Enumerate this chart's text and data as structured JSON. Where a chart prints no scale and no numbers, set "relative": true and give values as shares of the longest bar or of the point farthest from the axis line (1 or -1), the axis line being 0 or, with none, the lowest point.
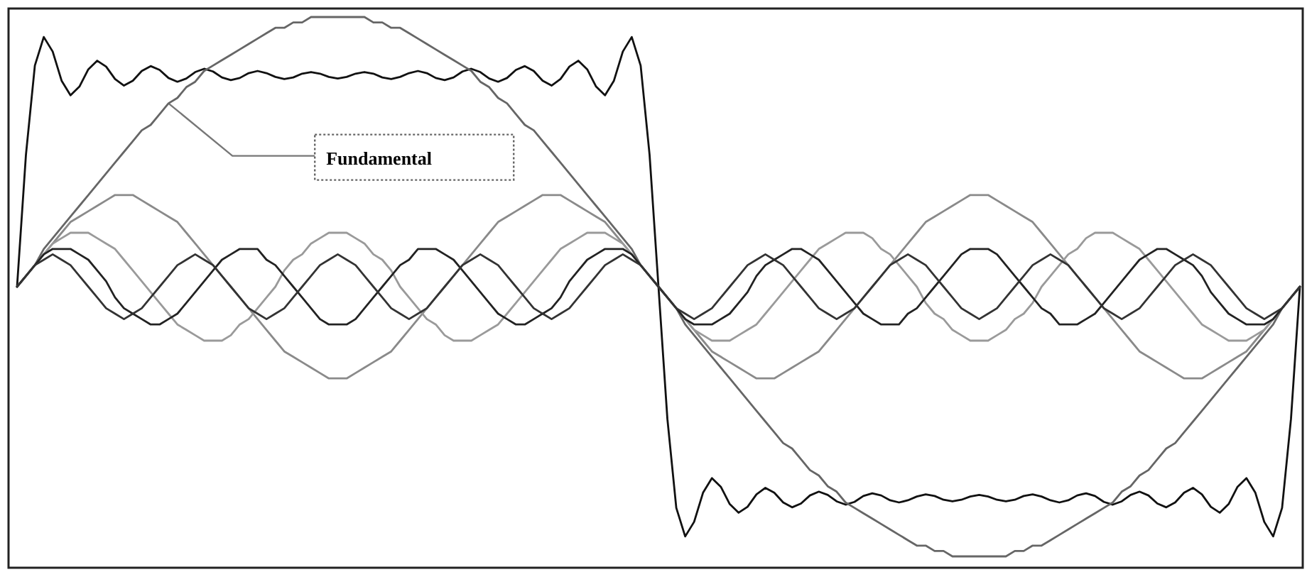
{
  "chart_data": {
    "type": "line",
    "relative": true,
    "categories": [
      null,
      null,
      null,
      null,
      null,
      null,
      null,
      null,
      null,
      null,
      null,
      null,
      null,
      null,
      null,
      null,
      null,
      null,
      null,
      null,
      null,
      null,
      null,
      null,
      null,
      null,
      null,
      null,
      null,
      null,
      null,
      null,
      null,
      null,
      null,
      null,
      null,
      null,
      null,
      null,
      null,
      null,
      null,
      null,
      null,
      null,
      null,
      null,
      null,
      null,
      null,
      null,
      null,
      null,
      null,
      null,
      null,
      null,
      null,
      null,
      null,
      null,
      null,
      null,
      null,
      null,
      null,
      null,
      null,
      null,
      null,
      null,
      null,
      null,
      null,
      null,
      null,
      null,
      null,
      null,
      null,
      null,
      null,
      null,
      null,
      null,
      null,
      null,
      null,
      null,
      null,
      null,
      null,
      null,
      null,
      null,
      null,
      null,
      null,
      null,
      null,
      null,
      null,
      null,
      null,
      null,
      null,
      null,
      null,
      null,
      null,
      null,
      null,
      null,
      null,
      null,
      null,
      null,
      null,
      null,
      null,
      null,
      null,
      null,
      null,
      null,
      null,
      null,
      null,
      null,
      null,
      null,
      null,
      null,
      null,
      null,
      null,
      null,
      null,
      null,
      null,
      null,
      null,
      null,
      null
    ],
    "series": [
      {
        "color": "#111111",
        "values": [
          0.5,
          0.745,
          0.91,
          0.963,
          0.936,
          0.882,
          0.855,
          0.871,
          0.903,
          0.919,
          0.908,
          0.885,
          0.873,
          0.882,
          0.9,
          0.909,
          0.902,
          0.887,
          0.88,
          0.886,
          0.898,
          0.904,
          0.899,
          0.888,
          0.883,
          0.887,
          0.896,
          0.9,
          0.896,
          0.889,
          0.885,
          0.888,
          0.895,
          0.898,
          0.895,
          0.889,
          0.886,
          0.889,
          0.895,
          0.898,
          0.895,
          0.888,
          0.885,
          0.889,
          0.896,
          0.9,
          0.896,
          0.887,
          0.883,
          0.888,
          0.899,
          0.904,
          0.898,
          0.886,
          0.88,
          0.887,
          0.902,
          0.909,
          0.9,
          0.882,
          0.873,
          0.885,
          0.908,
          0.919,
          0.903,
          0.871,
          0.855,
          0.882,
          0.936,
          0.963,
          0.91,
          0.745,
          0.5,
          0.255,
          0.09,
          0.037,
          0.064,
          0.118,
          0.145,
          0.129,
          0.097,
          0.081,
          0.092,
          0.115,
          0.127,
          0.118,
          0.1,
          0.091,
          0.098,
          0.113,
          0.12,
          0.114,
          0.102,
          0.096,
          0.101,
          0.112,
          0.117,
          0.113,
          0.104,
          0.1,
          0.104,
          0.111,
          0.115,
          0.112,
          0.105,
          0.102,
          0.105,
          0.111,
          0.114,
          0.111,
          0.105,
          0.102,
          0.105,
          0.112,
          0.115,
          0.111,
          0.104,
          0.1,
          0.104,
          0.113,
          0.117,
          0.112,
          0.101,
          0.096,
          0.102,
          0.114,
          0.12,
          0.113,
          0.098,
          0.091,
          0.1,
          0.118,
          0.127,
          0.115,
          0.092,
          0.081,
          0.097,
          0.129,
          0.145,
          0.118,
          0.064,
          0.037,
          0.09,
          0.255,
          0.5
        ]
      },
      {
        "name": "Fundamental",
        "color": "#666666",
        "values": [
          0.5,
          0.52,
          0.54,
          0.57,
          0.59,
          0.61,
          0.63,
          0.65,
          0.67,
          0.69,
          0.71,
          0.73,
          0.75,
          0.77,
          0.79,
          0.8,
          0.82,
          0.84,
          0.85,
          0.87,
          0.88,
          0.9,
          0.91,
          0.92,
          0.93,
          0.94,
          0.95,
          0.96,
          0.97,
          0.98,
          0.98,
          0.99,
          0.99,
          1,
          1,
          1,
          1,
          1,
          1,
          1,
          0.99,
          0.99,
          0.98,
          0.98,
          0.97,
          0.96,
          0.95,
          0.94,
          0.93,
          0.92,
          0.91,
          0.9,
          0.88,
          0.87,
          0.85,
          0.84,
          0.82,
          0.8,
          0.79,
          0.77,
          0.75,
          0.73,
          0.71,
          0.69,
          0.67,
          0.65,
          0.63,
          0.61,
          0.59,
          0.57,
          0.54,
          0.52,
          0.5,
          0.48,
          0.46,
          0.43,
          0.41,
          0.39,
          0.37,
          0.35,
          0.33,
          0.31,
          0.29,
          0.27,
          0.25,
          0.23,
          0.21,
          0.2,
          0.18,
          0.16,
          0.15,
          0.13,
          0.12,
          0.1,
          0.09,
          0.08,
          0.07,
          0.06,
          0.05,
          0.04,
          0.03,
          0.02,
          0.02,
          0.01,
          0.01,
          0,
          0,
          0,
          0,
          0,
          0,
          0,
          0.01,
          0.01,
          0.02,
          0.02,
          0.03,
          0.04,
          0.05,
          0.06,
          0.07,
          0.08,
          0.09,
          0.1,
          0.12,
          0.13,
          0.15,
          0.16,
          0.18,
          0.2,
          0.21,
          0.23,
          0.25,
          0.27,
          0.29,
          0.31,
          0.33,
          0.35,
          0.37,
          0.39,
          0.41,
          0.43,
          0.46,
          0.48,
          0.5
        ]
      },
      {
        "color": "#8a8a8a",
        "values": [
          0.5,
          0.52,
          0.54,
          0.56,
          0.58,
          0.6,
          0.62,
          0.63,
          0.64,
          0.65,
          0.66,
          0.67,
          0.67,
          0.67,
          0.66,
          0.65,
          0.64,
          0.63,
          0.62,
          0.6,
          0.58,
          0.56,
          0.54,
          0.52,
          0.5,
          0.48,
          0.46,
          0.44,
          0.42,
          0.4,
          0.38,
          0.37,
          0.36,
          0.35,
          0.34,
          0.33,
          0.33,
          0.33,
          0.34,
          0.35,
          0.36,
          0.37,
          0.38,
          0.4,
          0.42,
          0.44,
          0.46,
          0.48,
          0.5,
          0.52,
          0.54,
          0.56,
          0.58,
          0.6,
          0.62,
          0.63,
          0.64,
          0.65,
          0.66,
          0.67,
          0.67,
          0.67,
          0.66,
          0.65,
          0.64,
          0.63,
          0.62,
          0.6,
          0.58,
          0.56,
          0.54,
          0.52,
          0.5,
          0.48,
          0.46,
          0.44,
          0.42,
          0.4,
          0.38,
          0.37,
          0.36,
          0.35,
          0.34,
          0.33,
          0.33,
          0.33,
          0.34,
          0.35,
          0.36,
          0.37,
          0.38,
          0.4,
          0.42,
          0.44,
          0.46,
          0.48,
          0.5,
          0.52,
          0.54,
          0.56,
          0.58,
          0.6,
          0.62,
          0.63,
          0.64,
          0.65,
          0.66,
          0.67,
          0.67,
          0.67,
          0.66,
          0.65,
          0.64,
          0.63,
          0.62,
          0.6,
          0.58,
          0.56,
          0.54,
          0.52,
          0.5,
          0.48,
          0.46,
          0.44,
          0.42,
          0.4,
          0.38,
          0.37,
          0.36,
          0.35,
          0.34,
          0.33,
          0.33,
          0.33,
          0.34,
          0.35,
          0.36,
          0.37,
          0.38,
          0.4,
          0.42,
          0.44,
          0.46,
          0.48,
          0.5
        ]
      },
      {
        "color": "#9a9a9a",
        "values": [
          0.5,
          0.52,
          0.54,
          0.56,
          0.58,
          0.59,
          0.6,
          0.6,
          0.6,
          0.59,
          0.58,
          0.57,
          0.55,
          0.53,
          0.51,
          0.49,
          0.47,
          0.45,
          0.43,
          0.42,
          0.41,
          0.4,
          0.4,
          0.4,
          0.41,
          0.43,
          0.44,
          0.46,
          0.48,
          0.5,
          0.53,
          0.55,
          0.56,
          0.58,
          0.59,
          0.6,
          0.6,
          0.6,
          0.59,
          0.58,
          0.56,
          0.55,
          0.53,
          0.5,
          0.48,
          0.46,
          0.44,
          0.43,
          0.41,
          0.4,
          0.4,
          0.4,
          0.41,
          0.42,
          0.43,
          0.45,
          0.47,
          0.49,
          0.51,
          0.53,
          0.55,
          0.57,
          0.58,
          0.59,
          0.6,
          0.6,
          0.6,
          0.59,
          0.58,
          0.56,
          0.54,
          0.52,
          0.5,
          0.48,
          0.46,
          0.44,
          0.42,
          0.41,
          0.4,
          0.4,
          0.4,
          0.41,
          0.42,
          0.43,
          0.45,
          0.47,
          0.49,
          0.51,
          0.53,
          0.55,
          0.57,
          0.58,
          0.59,
          0.6,
          0.6,
          0.6,
          0.59,
          0.57,
          0.56,
          0.54,
          0.52,
          0.5,
          0.47,
          0.45,
          0.44,
          0.42,
          0.41,
          0.4,
          0.4,
          0.4,
          0.41,
          0.42,
          0.44,
          0.45,
          0.47,
          0.5,
          0.52,
          0.54,
          0.56,
          0.57,
          0.59,
          0.6,
          0.6,
          0.6,
          0.59,
          0.58,
          0.57,
          0.55,
          0.53,
          0.51,
          0.49,
          0.47,
          0.45,
          0.43,
          0.42,
          0.41,
          0.4,
          0.4,
          0.4,
          0.41,
          0.42,
          0.44,
          0.46,
          0.48,
          0.5
        ]
      },
      {
        "color": "#222222",
        "values": [
          0.5,
          0.52,
          0.54,
          0.56,
          0.57,
          0.57,
          0.57,
          0.56,
          0.55,
          0.53,
          0.51,
          0.48,
          0.46,
          0.45,
          0.44,
          0.43,
          0.43,
          0.44,
          0.45,
          0.47,
          0.49,
          0.51,
          0.53,
          0.55,
          0.56,
          0.57,
          0.57,
          0.57,
          0.55,
          0.54,
          0.52,
          0.5,
          0.48,
          0.46,
          0.44,
          0.43,
          0.43,
          0.43,
          0.44,
          0.46,
          0.48,
          0.5,
          0.52,
          0.54,
          0.55,
          0.57,
          0.57,
          0.57,
          0.56,
          0.55,
          0.53,
          0.51,
          0.49,
          0.47,
          0.45,
          0.44,
          0.43,
          0.43,
          0.44,
          0.45,
          0.46,
          0.48,
          0.51,
          0.53,
          0.55,
          0.56,
          0.57,
          0.57,
          0.57,
          0.56,
          0.54,
          0.52,
          0.5,
          0.48,
          0.46,
          0.44,
          0.43,
          0.43,
          0.43,
          0.44,
          0.45,
          0.47,
          0.49,
          0.52,
          0.54,
          0.55,
          0.56,
          0.57,
          0.57,
          0.56,
          0.55,
          0.53,
          0.51,
          0.49,
          0.47,
          0.45,
          0.44,
          0.43,
          0.43,
          0.43,
          0.45,
          0.46,
          0.48,
          0.5,
          0.52,
          0.54,
          0.56,
          0.57,
          0.57,
          0.57,
          0.56,
          0.54,
          0.52,
          0.5,
          0.48,
          0.46,
          0.45,
          0.43,
          0.43,
          0.43,
          0.44,
          0.45,
          0.47,
          0.49,
          0.51,
          0.53,
          0.55,
          0.56,
          0.57,
          0.57,
          0.56,
          0.55,
          0.54,
          0.52,
          0.49,
          0.47,
          0.45,
          0.44,
          0.43,
          0.43,
          0.43,
          0.44,
          0.46,
          0.48,
          0.5
        ]
      },
      {
        "color": "#333333",
        "values": [
          0.5,
          0.52,
          0.54,
          0.55,
          0.56,
          0.55,
          0.54,
          0.52,
          0.5,
          0.48,
          0.46,
          0.45,
          0.44,
          0.45,
          0.46,
          0.48,
          0.5,
          0.52,
          0.54,
          0.55,
          0.56,
          0.55,
          0.54,
          0.52,
          0.5,
          0.48,
          0.46,
          0.45,
          0.44,
          0.45,
          0.46,
          0.48,
          0.5,
          0.52,
          0.54,
          0.55,
          0.56,
          0.55,
          0.54,
          0.52,
          0.5,
          0.48,
          0.46,
          0.45,
          0.44,
          0.45,
          0.46,
          0.48,
          0.5,
          0.52,
          0.54,
          0.55,
          0.56,
          0.55,
          0.54,
          0.52,
          0.5,
          0.48,
          0.46,
          0.45,
          0.44,
          0.45,
          0.46,
          0.48,
          0.5,
          0.52,
          0.54,
          0.55,
          0.56,
          0.55,
          0.54,
          0.52,
          0.5,
          0.48,
          0.46,
          0.45,
          0.44,
          0.45,
          0.46,
          0.48,
          0.5,
          0.52,
          0.54,
          0.55,
          0.56,
          0.55,
          0.54,
          0.52,
          0.5,
          0.48,
          0.46,
          0.45,
          0.44,
          0.45,
          0.46,
          0.48,
          0.5,
          0.52,
          0.54,
          0.55,
          0.56,
          0.55,
          0.54,
          0.52,
          0.5,
          0.48,
          0.46,
          0.45,
          0.44,
          0.45,
          0.46,
          0.48,
          0.5,
          0.52,
          0.54,
          0.55,
          0.56,
          0.55,
          0.54,
          0.52,
          0.5,
          0.48,
          0.46,
          0.45,
          0.44,
          0.45,
          0.46,
          0.48,
          0.5,
          0.52,
          0.54,
          0.55,
          0.56,
          0.55,
          0.54,
          0.52,
          0.5,
          0.48,
          0.46,
          0.45,
          0.44,
          0.45,
          0.46,
          0.48,
          0.5
        ]
      }
    ]
  }
}
